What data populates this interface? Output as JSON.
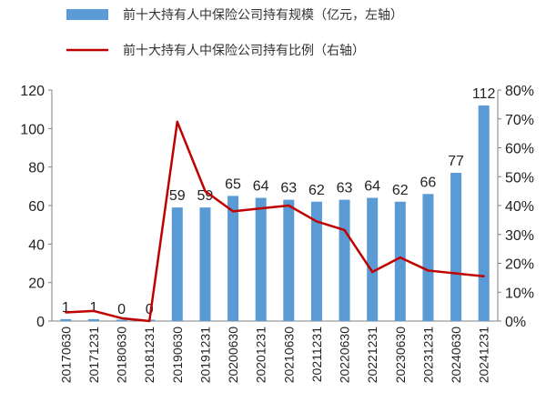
{
  "chart_data": {
    "type": "bar",
    "categories": [
      "20170630",
      "20171231",
      "20180630",
      "20181231",
      "20190630",
      "20191231",
      "20200630",
      "20201231",
      "20210630",
      "20211231",
      "20220630",
      "20221231",
      "20230630",
      "20231231",
      "20240630",
      "20241231"
    ],
    "series": [
      {
        "name": "前十大持有人中保险公司持有规模（亿元，左轴）",
        "type": "bar",
        "axis": "left",
        "color": "#5B9BD5",
        "values": [
          1,
          1,
          0,
          0,
          59,
          59,
          65,
          64,
          63,
          62,
          63,
          64,
          62,
          66,
          77,
          112
        ],
        "labels": [
          "1",
          "1",
          "0",
          "0",
          "59",
          "59",
          "65",
          "64",
          "63",
          "62",
          "63",
          "64",
          "62",
          "66",
          "77",
          "112"
        ]
      },
      {
        "name": "前十大持有人中保险公司持有比例（右轴）",
        "type": "line",
        "axis": "right",
        "color": "#C00000",
        "values": [
          3,
          3.5,
          1,
          0,
          69,
          45,
          38,
          39,
          40,
          34.5,
          31.5,
          17,
          22,
          17.5,
          16.5,
          15.5
        ]
      }
    ],
    "y_left": {
      "min": 0,
      "max": 120,
      "ticks": [
        "0",
        "20",
        "40",
        "60",
        "80",
        "100",
        "120"
      ]
    },
    "y_right": {
      "min": 0,
      "max": 80,
      "ticks": [
        "0%",
        "10%",
        "20%",
        "30%",
        "40%",
        "50%",
        "60%",
        "70%",
        "80%"
      ]
    },
    "legend_position": "top"
  }
}
